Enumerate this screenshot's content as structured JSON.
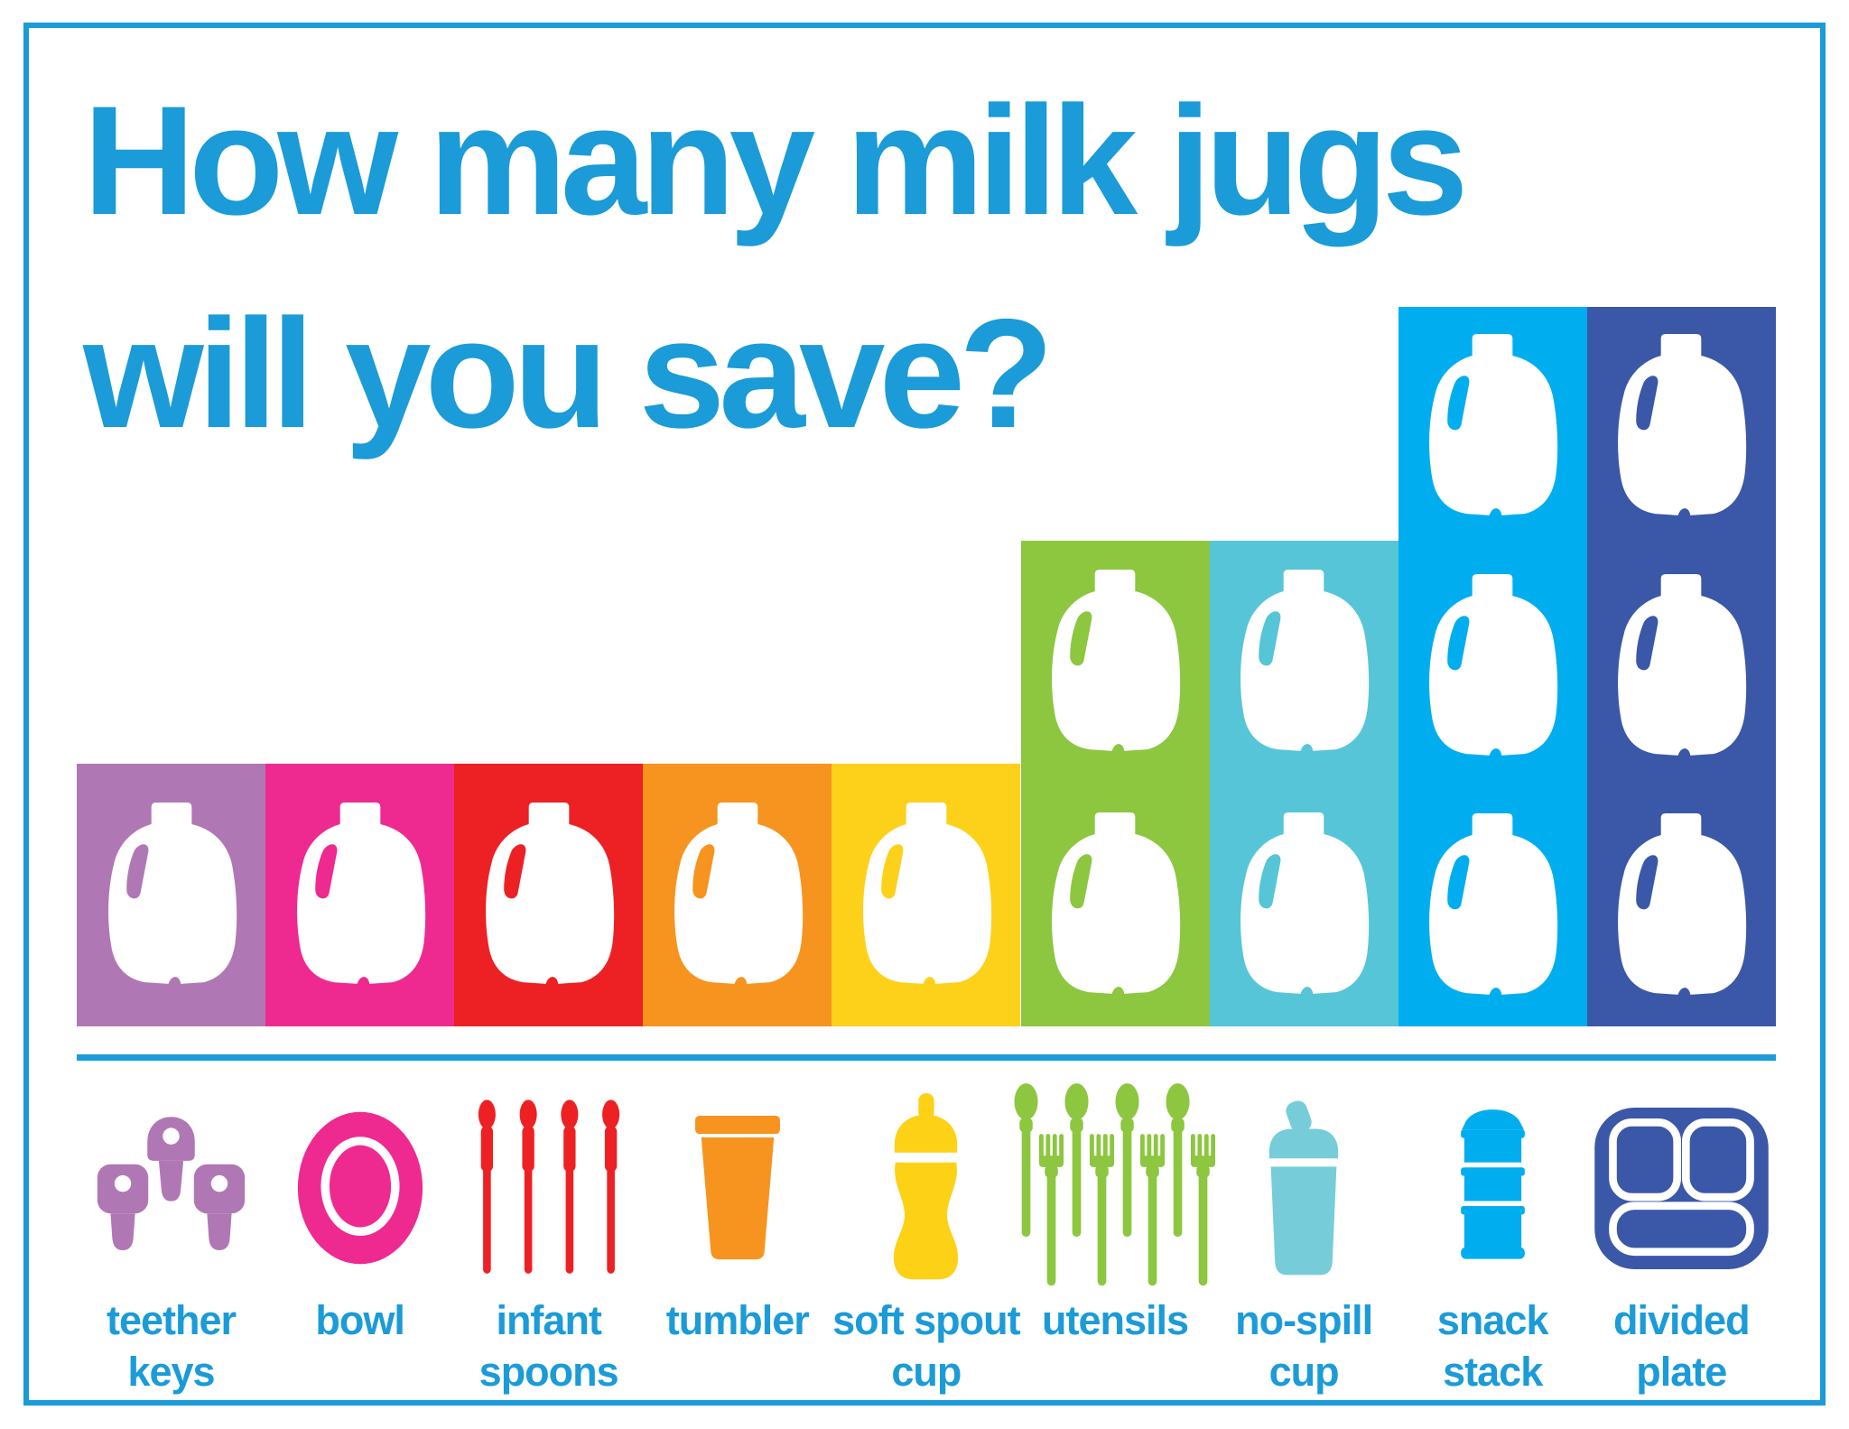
{
  "title": {
    "line1": "How many milk jugs",
    "line2": "will you save?"
  },
  "palette": {
    "accent_blue": "#1b9bd8",
    "jug_white": "#ffffff"
  },
  "chart_data": {
    "type": "bar",
    "subtype": "pictograph",
    "title": "How many milk jugs will you save?",
    "categories": [
      "teether keys",
      "bowl",
      "infant spoons",
      "tumbler",
      "soft spout cup",
      "utensils",
      "no-spill cup",
      "snack stack",
      "divided plate"
    ],
    "values": [
      1,
      1,
      1,
      1,
      1,
      2,
      2,
      3,
      3
    ],
    "unit": "milk jugs",
    "ylim": [
      0,
      3
    ],
    "colors": [
      "#b077b5",
      "#ee2a90",
      "#ed2024",
      "#f6941f",
      "#fdd11a",
      "#8dc63f",
      "#56c5d8",
      "#00aeef",
      "#3b57a8"
    ],
    "icon": "milk-jug",
    "legend": "none",
    "grid": false,
    "axes": "none"
  },
  "products": [
    {
      "label": "teether\nkeys",
      "icon": "teether-keys-icon",
      "color": "#b077b5"
    },
    {
      "label": "bowl",
      "icon": "bowl-icon",
      "color": "#ee2a90"
    },
    {
      "label": "infant\nspoons",
      "icon": "infant-spoons-icon",
      "color": "#ed2024"
    },
    {
      "label": "tumbler",
      "icon": "tumbler-icon",
      "color": "#f6941f"
    },
    {
      "label": "soft spout\ncup",
      "icon": "soft-spout-cup-icon",
      "color": "#fdd116"
    },
    {
      "label": "utensils",
      "icon": "utensils-icon",
      "color": "#8dc63f"
    },
    {
      "label": "no-spill\ncup",
      "icon": "no-spill-cup-icon",
      "color": "#76cdd9"
    },
    {
      "label": "snack\nstack",
      "icon": "snack-stack-icon",
      "color": "#00aeef"
    },
    {
      "label": "divided\nplate",
      "icon": "divided-plate-icon",
      "color": "#3b57a8"
    }
  ]
}
